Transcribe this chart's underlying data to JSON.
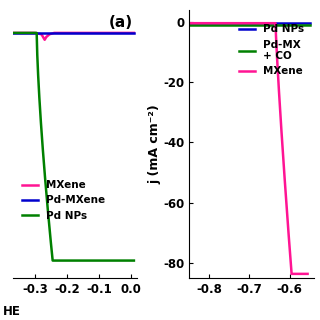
{
  "panel_a": {
    "title": "(a)",
    "xlim": [
      -0.37,
      0.02
    ],
    "ylim": [
      -90,
      8
    ],
    "xticks": [
      -0.3,
      -0.2,
      -0.1,
      0.0
    ],
    "series": [
      {
        "label": "MXene",
        "color": "#FF1493"
      },
      {
        "label": "Pd NPs",
        "color": "#008000"
      },
      {
        "label": "Pd-MXene",
        "color": "#0000CD"
      }
    ]
  },
  "panel_b": {
    "xlim": [
      -0.85,
      -0.54
    ],
    "ylim": [
      -85,
      4
    ],
    "xticks": [
      -0.8,
      -0.7,
      -0.6
    ],
    "yticks": [
      0,
      -20,
      -40,
      -60,
      -80
    ],
    "ylabel": "j (mA cm⁻²)",
    "series": [
      {
        "label": "MXene",
        "color": "#FF1493"
      },
      {
        "label": "Pd NPs",
        "color": "#0000CD"
      },
      {
        "label": "Pd-MX\n+ CO",
        "color": "#008000"
      }
    ]
  },
  "legend_fontsize": 7.5,
  "tick_fontsize": 8.5,
  "label_fontsize": 9,
  "title_fontsize": 11
}
